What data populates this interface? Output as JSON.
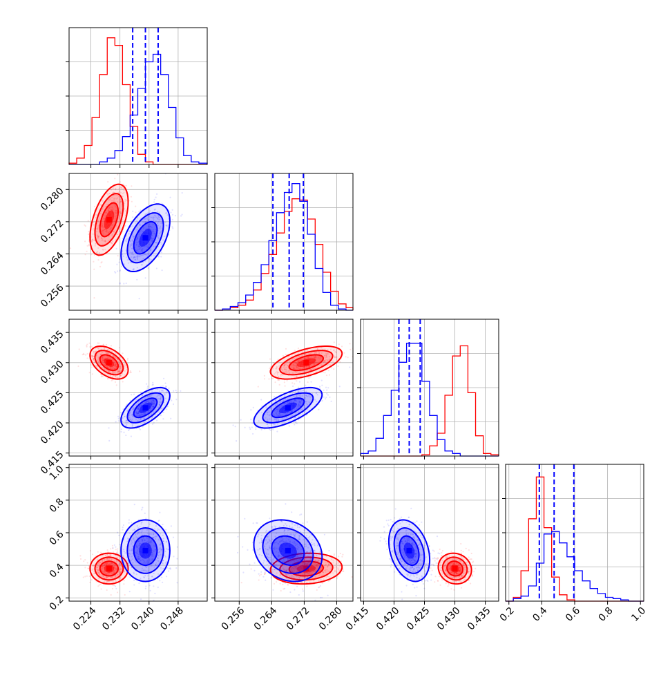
{
  "chart_data": {
    "type": "corner",
    "parameters": [
      {
        "range": [
          0.218,
          0.256
        ],
        "ticks": [
          0.224,
          0.232,
          0.24,
          0.248
        ],
        "tick_labels": [
          "0.224",
          "0.232",
          "0.240",
          "0.248"
        ]
      },
      {
        "range": [
          0.25,
          0.284
        ],
        "ticks": [
          0.256,
          0.264,
          0.272,
          0.28
        ],
        "tick_labels": [
          "0.256",
          "0.264",
          "0.272",
          "0.280"
        ]
      },
      {
        "range": [
          0.4145,
          0.4372
        ],
        "ticks": [
          0.415,
          0.42,
          0.425,
          0.43,
          0.435
        ],
        "tick_labels": [
          "0.415",
          "0.420",
          "0.425",
          "0.430",
          "0.435"
        ]
      },
      {
        "range": [
          0.18,
          1.02
        ],
        "ticks": [
          0.2,
          0.4,
          0.6,
          0.8,
          1.0
        ],
        "tick_labels": [
          "0.2",
          "0.4",
          "0.6",
          "0.8",
          "1.0"
        ]
      }
    ],
    "series": [
      {
        "color": "#ff0000",
        "means": [
          0.229,
          0.2725,
          0.43,
          0.38
        ],
        "sds": [
          0.0025,
          0.0042,
          0.0013,
          0.045
        ],
        "corr": [
          [
            1,
            0.5,
            -0.45,
            0.0
          ],
          [
            0.5,
            1,
            0.55,
            0.1
          ],
          [
            -0.45,
            0.55,
            1,
            -0.1
          ],
          [
            0.0,
            0.1,
            -0.1,
            1
          ]
        ]
      },
      {
        "color": "#0000ff",
        "means": [
          0.239,
          0.268,
          0.4225,
          0.49
        ],
        "sds": [
          0.0032,
          0.004,
          0.0016,
          0.09
        ],
        "corr": [
          [
            1,
            0.5,
            0.6,
            0.0
          ],
          [
            0.5,
            1,
            0.65,
            -0.2
          ],
          [
            0.6,
            0.65,
            1,
            -0.3
          ],
          [
            0.0,
            -0.2,
            -0.3,
            1
          ]
        ]
      }
    ],
    "quantile_lines": {
      "color": "#0000ff",
      "values": [
        [
          0.2355,
          0.239,
          0.2425
        ],
        [
          0.2643,
          0.2683,
          0.2718
        ],
        [
          0.4208,
          0.4225,
          0.4243
        ],
        [
          0.385,
          0.475,
          0.595
        ]
      ]
    },
    "histograms_1d": [
      {
        "bin_edges": [
          0.218,
          0.2201,
          0.2222,
          0.2243,
          0.2264,
          0.2285,
          0.2306,
          0.2327,
          0.2348,
          0.2369,
          0.239,
          0.2411,
          0.2432,
          0.2453,
          0.2474,
          0.2495,
          0.2516,
          0.2537,
          0.256
        ],
        "counts": {
          "red": [
            0.01,
            0.05,
            0.15,
            0.37,
            0.71,
            1.0,
            0.94,
            0.63,
            0.3,
            0.08,
            0.02,
            0,
            0,
            0,
            0,
            0,
            0,
            0
          ],
          "blue": [
            0,
            0,
            0,
            0,
            0.02,
            0.05,
            0.11,
            0.22,
            0.39,
            0.6,
            0.81,
            0.87,
            0.71,
            0.45,
            0.21,
            0.07,
            0.02,
            0.01
          ]
        }
      },
      {
        "bin_edges": [
          0.25,
          0.2519,
          0.2538,
          0.2557,
          0.2576,
          0.2595,
          0.2614,
          0.2633,
          0.2652,
          0.2671,
          0.269,
          0.2709,
          0.2728,
          0.2747,
          0.2766,
          0.2785,
          0.2804,
          0.2823,
          0.284
        ],
        "counts": {
          "red": [
            0,
            0.01,
            0.02,
            0.04,
            0.08,
            0.16,
            0.29,
            0.44,
            0.61,
            0.78,
            0.88,
            0.87,
            0.72,
            0.52,
            0.3,
            0.15,
            0.05,
            0.02
          ],
          "blue": [
            0,
            0.01,
            0.03,
            0.06,
            0.12,
            0.22,
            0.36,
            0.55,
            0.77,
            0.93,
            1.0,
            0.86,
            0.6,
            0.33,
            0.14,
            0.04,
            0.01,
            0
          ]
        }
      },
      {
        "bin_edges": [
          0.4145,
          0.41576,
          0.41702,
          0.41828,
          0.41954,
          0.4208,
          0.42206,
          0.42332,
          0.42458,
          0.42584,
          0.4271,
          0.42836,
          0.42962,
          0.43088,
          0.43214,
          0.4334,
          0.43466,
          0.43592,
          0.4372
        ],
        "counts": {
          "red": [
            0,
            0,
            0,
            0,
            0,
            0,
            0,
            0,
            0.01,
            0.08,
            0.18,
            0.48,
            0.79,
            0.87,
            0.5,
            0.16,
            0.02,
            0.01
          ],
          "blue": [
            0.02,
            0.04,
            0.14,
            0.32,
            0.52,
            0.74,
            0.89,
            0.89,
            0.59,
            0.32,
            0.13,
            0.04,
            0.02,
            0,
            0,
            0,
            0,
            0
          ]
        }
      },
      {
        "bin_edges": [
          0.18,
          0.2267,
          0.2733,
          0.32,
          0.3667,
          0.4133,
          0.46,
          0.5067,
          0.5533,
          0.6,
          0.6467,
          0.6933,
          0.74,
          0.7867,
          0.8333,
          0.88,
          0.9267,
          0.9733,
          1.02
        ],
        "counts": {
          "red": [
            0,
            0.03,
            0.24,
            0.65,
            0.98,
            0.58,
            0.19,
            0.05,
            0.01,
            0,
            0,
            0,
            0,
            0,
            0,
            0,
            0,
            0
          ],
          "blue": [
            0,
            0.02,
            0.04,
            0.12,
            0.3,
            0.53,
            0.55,
            0.46,
            0.35,
            0.24,
            0.16,
            0.1,
            0.06,
            0.03,
            0.02,
            0.01,
            0,
            0
          ]
        }
      }
    ],
    "grid": true,
    "scatter_points_per_series": 450,
    "contour_levels": 3
  }
}
